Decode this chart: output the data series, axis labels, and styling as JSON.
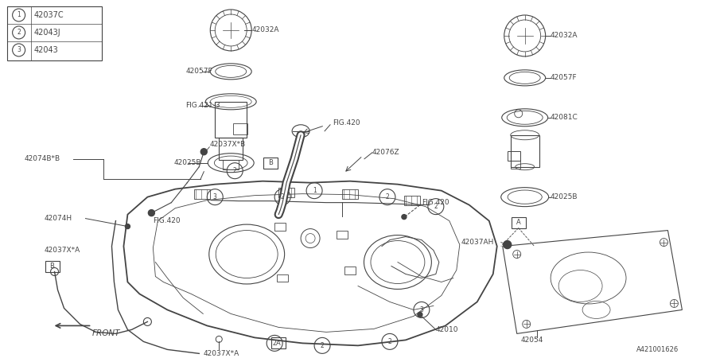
{
  "bg_color": "#ffffff",
  "line_color": "#444444",
  "text_color": "#444444",
  "legend": [
    {
      "num": "1",
      "code": "42037C"
    },
    {
      "num": "2",
      "code": "42043J"
    },
    {
      "num": "3",
      "code": "42043"
    }
  ],
  "diagram_id": "A421001626",
  "font_size": 6.5,
  "font_family": "DejaVu Sans"
}
